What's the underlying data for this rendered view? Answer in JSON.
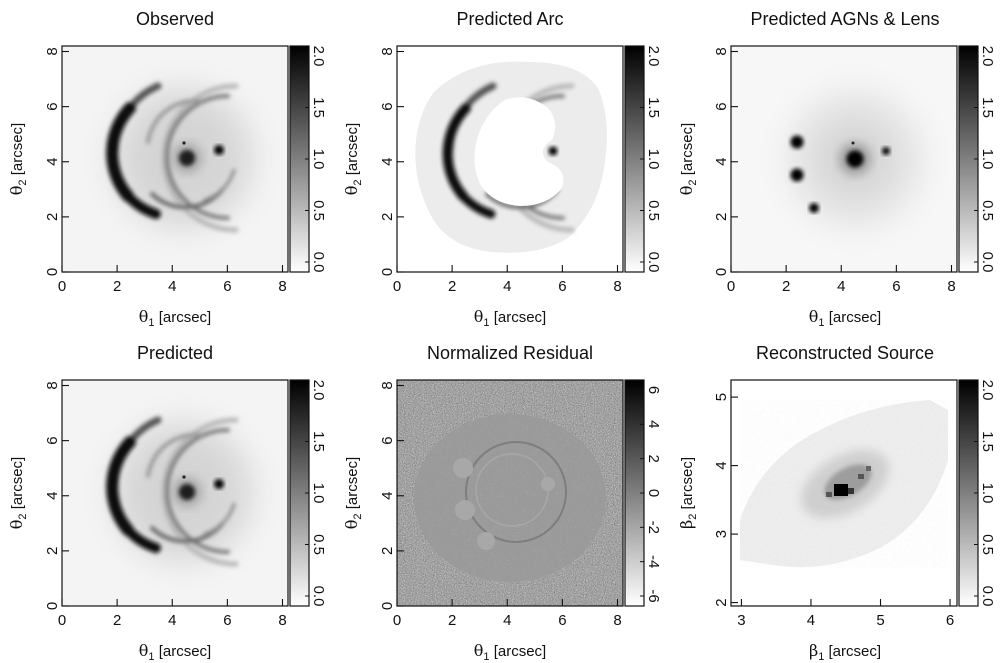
{
  "chart_data": [
    {
      "type": "heatmap",
      "title": "Observed",
      "xlabel": {
        "symbol": "θ",
        "sub": "1",
        "unit": "[arcsec]"
      },
      "ylabel": {
        "symbol": "θ",
        "sub": "2",
        "unit": "[arcsec]"
      },
      "xlim": [
        0,
        8.2
      ],
      "ylim": [
        0,
        8.2
      ],
      "xticks": [
        "0",
        "2",
        "4",
        "6",
        "8"
      ],
      "yticks": [
        "0",
        "2",
        "4",
        "6",
        "8"
      ],
      "colorbar": {
        "range": [
          0,
          2.0
        ],
        "ticks": [
          "0.0",
          "0.5",
          "1.0",
          "1.5",
          "2.0"
        ]
      },
      "colormap": [
        "#ffffff",
        "#000000"
      ]
    },
    {
      "type": "heatmap",
      "title": "Predicted Arc",
      "xlabel": {
        "symbol": "θ",
        "sub": "1",
        "unit": "[arcsec]"
      },
      "ylabel": {
        "symbol": "θ",
        "sub": "2",
        "unit": "[arcsec]"
      },
      "xlim": [
        0,
        8.2
      ],
      "ylim": [
        0,
        8.2
      ],
      "xticks": [
        "0",
        "2",
        "4",
        "6",
        "8"
      ],
      "yticks": [
        "0",
        "2",
        "4",
        "6",
        "8"
      ],
      "colorbar": {
        "range": [
          0,
          2.0
        ],
        "ticks": [
          "0.0",
          "0.5",
          "1.0",
          "1.5",
          "2.0"
        ]
      },
      "colormap": [
        "#ffffff",
        "#000000"
      ]
    },
    {
      "type": "heatmap",
      "title": "Predicted AGNs & Lens",
      "xlabel": {
        "symbol": "θ",
        "sub": "1",
        "unit": "[arcsec]"
      },
      "ylabel": {
        "symbol": "θ",
        "sub": "2",
        "unit": "[arcsec]"
      },
      "xlim": [
        0,
        8.2
      ],
      "ylim": [
        0,
        8.2
      ],
      "xticks": [
        "0",
        "2",
        "4",
        "6",
        "8"
      ],
      "yticks": [
        "0",
        "2",
        "4",
        "6",
        "8"
      ],
      "colorbar": {
        "range": [
          0,
          2.0
        ],
        "ticks": [
          "0.0",
          "0.5",
          "1.0",
          "1.5",
          "2.0"
        ]
      },
      "colormap": [
        "#ffffff",
        "#000000"
      ]
    },
    {
      "type": "heatmap",
      "title": "Predicted",
      "xlabel": {
        "symbol": "θ",
        "sub": "1",
        "unit": "[arcsec]"
      },
      "ylabel": {
        "symbol": "θ",
        "sub": "2",
        "unit": "[arcsec]"
      },
      "xlim": [
        0,
        8.2
      ],
      "ylim": [
        0,
        8.2
      ],
      "xticks": [
        "0",
        "2",
        "4",
        "6",
        "8"
      ],
      "yticks": [
        "0",
        "2",
        "4",
        "6",
        "8"
      ],
      "colorbar": {
        "range": [
          0,
          2.0
        ],
        "ticks": [
          "0.0",
          "0.5",
          "1.0",
          "1.5",
          "2.0"
        ]
      },
      "colormap": [
        "#ffffff",
        "#000000"
      ]
    },
    {
      "type": "heatmap",
      "title": "Normalized Residual",
      "xlabel": {
        "symbol": "θ",
        "sub": "1",
        "unit": "[arcsec]"
      },
      "ylabel": {
        "symbol": "θ",
        "sub": "2",
        "unit": "[arcsec]"
      },
      "xlim": [
        0,
        8.2
      ],
      "ylim": [
        0,
        8.2
      ],
      "xticks": [
        "0",
        "2",
        "4",
        "6",
        "8"
      ],
      "yticks": [
        "0",
        "2",
        "4",
        "6",
        "8"
      ],
      "colorbar": {
        "range": [
          -6,
          6
        ],
        "ticks": [
          "-6",
          "-4",
          "-2",
          "0",
          "2",
          "4",
          "6"
        ]
      },
      "colormap": [
        "#ffffff",
        "#000000"
      ]
    },
    {
      "type": "heatmap",
      "title": "Reconstructed Source",
      "xlabel": {
        "symbol": "β",
        "sub": "1",
        "unit": "[arcsec]"
      },
      "ylabel": {
        "symbol": "β",
        "sub": "2",
        "unit": "[arcsec]"
      },
      "xlim": [
        2.85,
        6.1
      ],
      "ylim": [
        1.95,
        5.25
      ],
      "xticks": [
        "3",
        "4",
        "5",
        "6"
      ],
      "yticks": [
        "2",
        "3",
        "4",
        "5"
      ],
      "colorbar": {
        "range": [
          0,
          2.0
        ],
        "ticks": [
          "0.0",
          "0.5",
          "1.0",
          "1.5",
          "2.0"
        ]
      },
      "colormap": [
        "#ffffff",
        "#000000"
      ]
    }
  ]
}
